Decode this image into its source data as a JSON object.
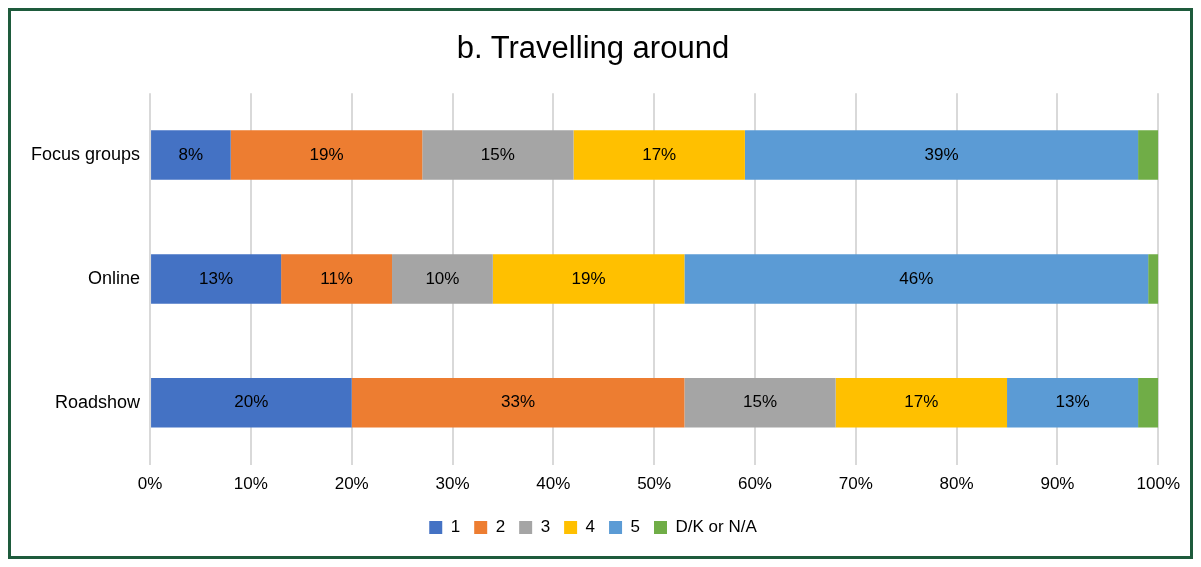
{
  "chart_data": {
    "type": "bar",
    "title": "b. Travelling around",
    "orientation": "horizontal",
    "stacked": true,
    "categories": [
      "Focus groups",
      "Online",
      "Roadshow"
    ],
    "series": [
      {
        "name": "1",
        "color": "#4472c4",
        "values": [
          8,
          13,
          20
        ],
        "value_labels": [
          "8%",
          "13%",
          "20%"
        ]
      },
      {
        "name": "2",
        "color": "#ed7d31",
        "values": [
          19,
          11,
          33
        ],
        "value_labels": [
          "19%",
          "11%",
          "33%"
        ]
      },
      {
        "name": "3",
        "color": "#a5a5a5",
        "values": [
          15,
          10,
          15
        ],
        "value_labels": [
          "15%",
          "10%",
          "15%"
        ]
      },
      {
        "name": "4",
        "color": "#ffc000",
        "values": [
          17,
          19,
          17
        ],
        "value_labels": [
          "17%",
          "19%",
          "17%"
        ]
      },
      {
        "name": "5",
        "color": "#5b9bd5",
        "values": [
          39,
          46,
          13
        ],
        "value_labels": [
          "39%",
          "46%",
          "13%"
        ]
      },
      {
        "name": "D/K or N/A",
        "color": "#70ad47",
        "values": [
          2,
          1,
          2
        ],
        "value_labels": [
          null,
          null,
          null
        ]
      }
    ],
    "xlim": [
      0,
      100
    ],
    "xticks": [
      {
        "value": 0,
        "label": "0%"
      },
      {
        "value": 10,
        "label": "10%"
      },
      {
        "value": 20,
        "label": "20%"
      },
      {
        "value": 30,
        "label": "30%"
      },
      {
        "value": 40,
        "label": "40%"
      },
      {
        "value": 50,
        "label": "50%"
      },
      {
        "value": 60,
        "label": "60%"
      },
      {
        "value": 70,
        "label": "70%"
      },
      {
        "value": 80,
        "label": "80%"
      },
      {
        "value": 90,
        "label": "90%"
      },
      {
        "value": 100,
        "label": "100%"
      }
    ],
    "grid": "x",
    "legend": "bottom"
  }
}
